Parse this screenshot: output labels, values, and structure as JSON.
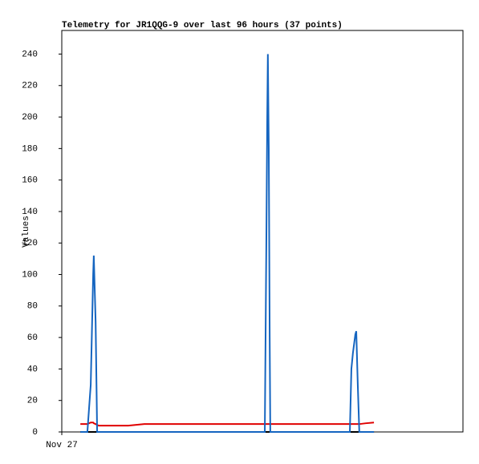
{
  "chart_data": {
    "type": "line",
    "title": "Telemetry for JR1QQG-9 over last 96 hours (37 points)",
    "y_label": "Values",
    "x": [
      6.1,
      8.4,
      9.5,
      10.3,
      10.5,
      11.1,
      11.6,
      12.1,
      16.6,
      21.8,
      27.1,
      32.4,
      37.6,
      45.5,
      50.8,
      56.1,
      61.3,
      66.6,
      67.1,
      67.4,
      67.6,
      67.9,
      68.2,
      68.4,
      74.5,
      79.7,
      85.0,
      90.3,
      94.5,
      95.0,
      95.5,
      96.3,
      96.6,
      97.1,
      97.6,
      99.7,
      102.4
    ],
    "series": [
      {
        "color": "#1565c0",
        "values": [
          0,
          0,
          30,
          100,
          112,
          70,
          0,
          0,
          0,
          0,
          0,
          0,
          0,
          0,
          0,
          0,
          0,
          0,
          120,
          200,
          240,
          180,
          60,
          0,
          0,
          0,
          0,
          0,
          0,
          40,
          50,
          62,
          64,
          30,
          0,
          0,
          0
        ]
      },
      {
        "color": "#e00000",
        "values": [
          5,
          5,
          6,
          6,
          5.5,
          5,
          4.5,
          4,
          4,
          4,
          5,
          5,
          5,
          5,
          5,
          5,
          5,
          5,
          5,
          5,
          5,
          5,
          5,
          5,
          5,
          5,
          5,
          5,
          5,
          5,
          5,
          5,
          5,
          5,
          5,
          5.5,
          6
        ]
      },
      {
        "color": "#000000",
        "values": [
          0,
          0,
          0,
          0,
          0,
          0,
          0,
          0,
          0,
          0,
          0,
          0,
          0,
          0,
          0,
          0,
          0,
          0,
          0,
          0,
          0,
          0,
          0,
          0,
          0,
          0,
          0,
          0,
          0,
          0,
          0,
          0,
          0,
          0,
          0,
          0,
          0
        ]
      }
    ],
    "xlim": [
      0,
      131.6
    ],
    "xticks": [
      {
        "value": 0,
        "label": "Nov 27"
      }
    ],
    "ylim": [
      0,
      255
    ],
    "yticks": [
      0,
      20,
      40,
      60,
      80,
      100,
      120,
      140,
      160,
      180,
      200,
      220,
      240
    ],
    "grid": false
  }
}
